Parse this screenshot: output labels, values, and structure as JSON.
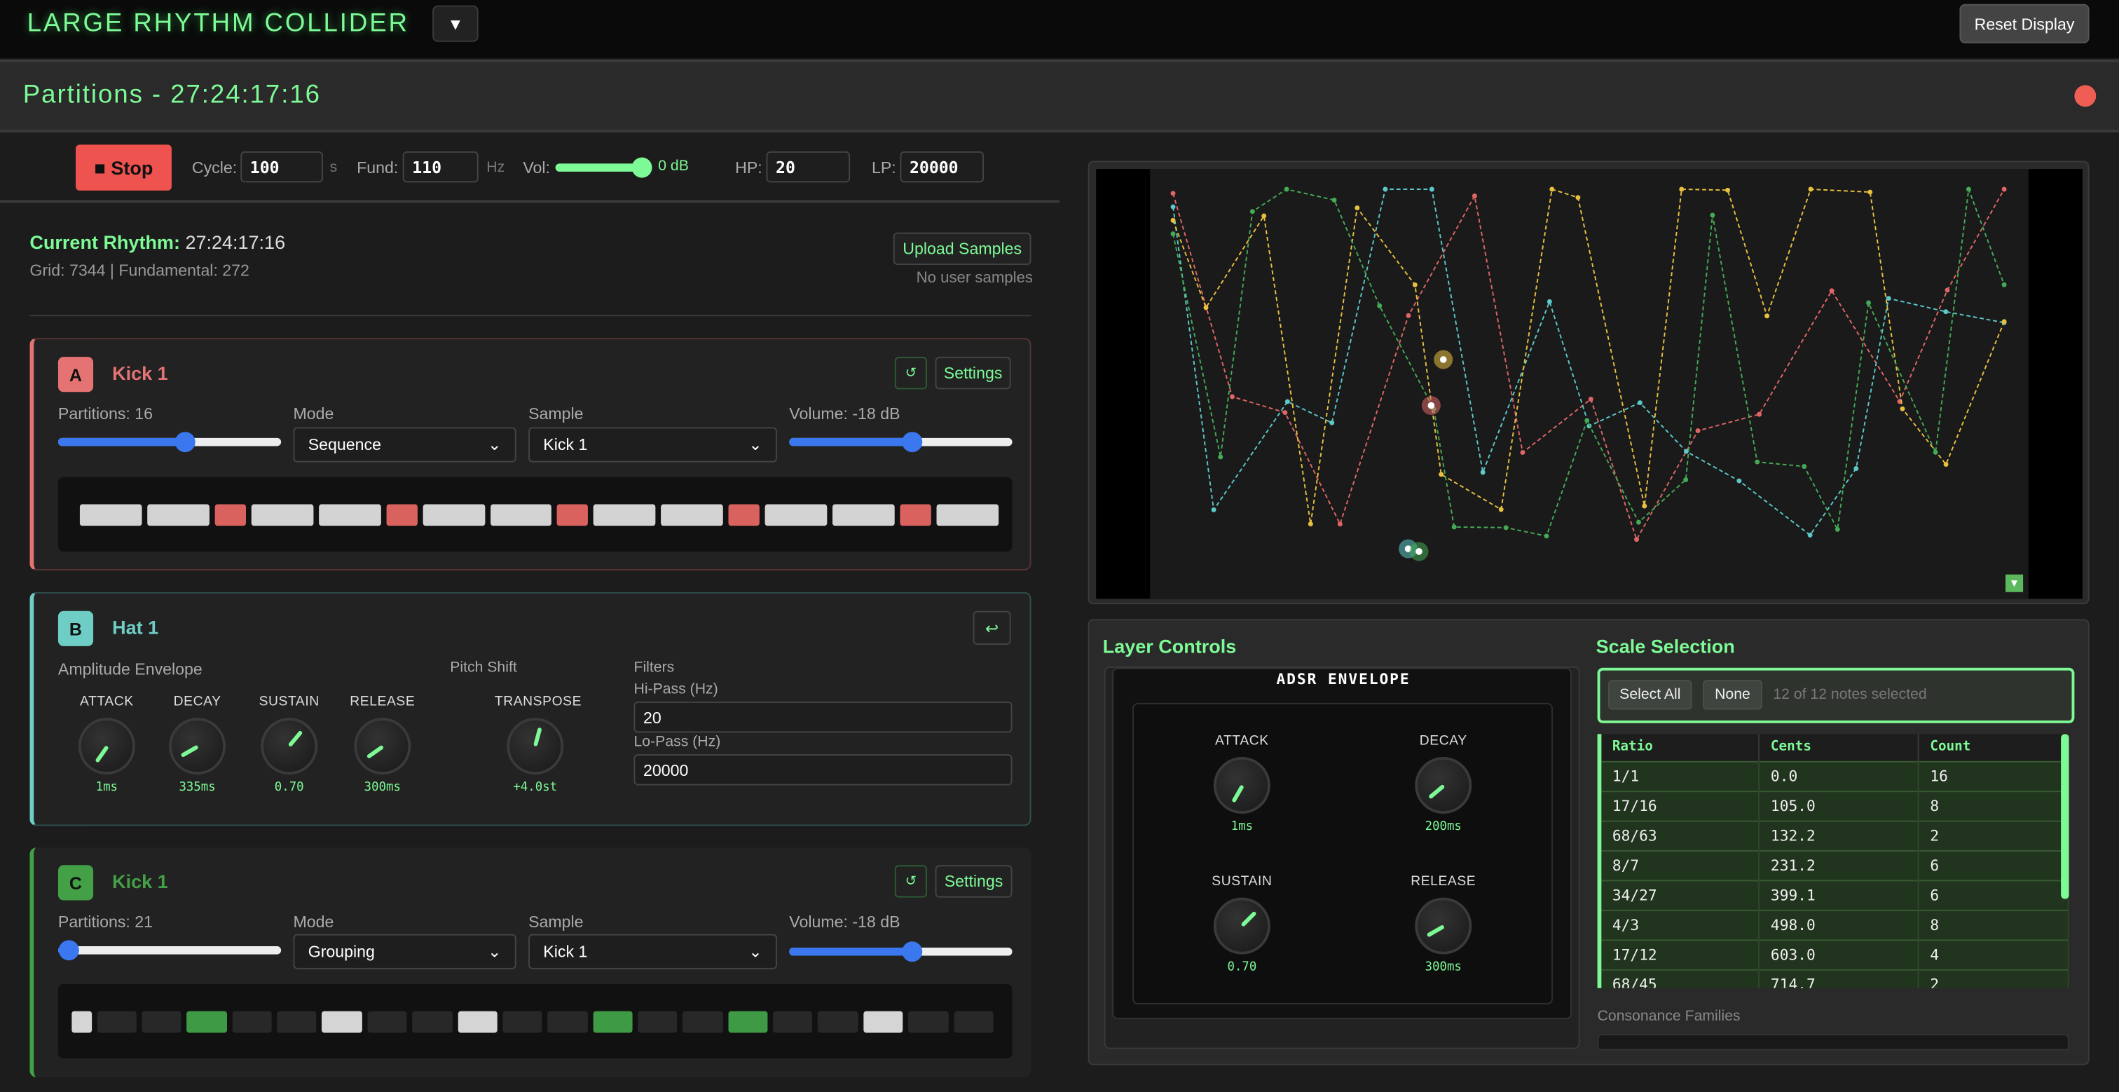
{
  "app": {
    "title": "LARGE RHYTHM COLLIDER",
    "menu_icon": "triangle-down",
    "reset_label": "Reset Display"
  },
  "window": {
    "title": "Partitions - 27:24:17:16",
    "close_color": "#ee5e55"
  },
  "transport": {
    "stop_label": "■ Stop",
    "cycle_label": "Cycle:",
    "cycle_value": "100",
    "cycle_unit": "s",
    "fund_label": "Fund:",
    "fund_value": "110",
    "fund_unit": "Hz",
    "vol_label": "Vol:",
    "vol_value": "0 dB",
    "vol_level": 1.0,
    "hp_label": "HP:",
    "hp_value": "20",
    "lp_label": "LP:",
    "lp_value": "20000"
  },
  "rhythm": {
    "label": "Current Rhythm:",
    "value": "27:24:17:16",
    "info": "Grid: 7344 | Fundamental: 272",
    "upload_label": "Upload Samples",
    "samples_status": "No user samples"
  },
  "layers": [
    {
      "letter": "A",
      "name": "Kick 1",
      "color": "#e57373",
      "partitions_label": "Partitions: 16",
      "partitions_level": 0.57,
      "mode_label": "Mode",
      "mode": "Sequence",
      "sample_label": "Sample",
      "sample": "Kick 1",
      "volume_label": "Volume: -18 dB",
      "volume_level": 0.55,
      "reset_icon": "↺",
      "settings_label": "Settings",
      "pattern": [
        "off",
        "off",
        "on",
        "off",
        "off",
        "on",
        "off",
        "off",
        "on",
        "off",
        "off",
        "on",
        "off",
        "off",
        "on",
        "off"
      ]
    },
    {
      "letter": "B",
      "name": "Hat 1",
      "color": "#6ecdc4",
      "collapse_icon": "↩",
      "env_label": "Amplitude Envelope",
      "pitch_label": "Pitch Shift",
      "filters_label": "Filters",
      "hipass_label": "Hi-Pass (Hz)",
      "hipass_value": "20",
      "lopass_label": "Lo-Pass (Hz)",
      "lopass_value": "20000",
      "knobs": [
        {
          "label": "ATTACK",
          "value": "1ms"
        },
        {
          "label": "DECAY",
          "value": "335ms"
        },
        {
          "label": "SUSTAIN",
          "value": "0.70"
        },
        {
          "label": "RELEASE",
          "value": "300ms"
        },
        {
          "label": "TRANSPOSE",
          "value": "+4.0st"
        }
      ]
    },
    {
      "letter": "C",
      "name": "Kick 1",
      "color": "#43a047",
      "partitions_label": "Partitions: 21",
      "partitions_level": 0.05,
      "mode_label": "Mode",
      "mode": "Grouping",
      "sample_label": "Sample",
      "sample": "Kick 1",
      "volume_label": "Volume: -18 dB",
      "volume_level": 0.55,
      "reset_icon": "↺",
      "settings_label": "Settings",
      "pattern": [
        "white",
        "dark",
        "dark",
        "on",
        "dark",
        "dark",
        "white",
        "dark",
        "dark",
        "white",
        "dark",
        "dark",
        "on",
        "dark",
        "dark",
        "on",
        "dark",
        "dark",
        "white",
        "dark",
        "dark"
      ]
    }
  ],
  "visualizer": {
    "series_colors": [
      "#e06666",
      "#5cc8c8",
      "#e8c040",
      "#44aa55"
    ],
    "toggle_icon": "triangle-down"
  },
  "layer_controls": {
    "title": "Layer Controls",
    "adsr_title": "ADSR ENVELOPE",
    "knobs": [
      {
        "label": "ATTACK",
        "value": "1ms"
      },
      {
        "label": "DECAY",
        "value": "200ms"
      },
      {
        "label": "SUSTAIN",
        "value": "0.70"
      },
      {
        "label": "RELEASE",
        "value": "300ms"
      }
    ]
  },
  "scale": {
    "title": "Scale Selection",
    "select_all": "Select All",
    "none": "None",
    "status": "12 of 12 notes selected",
    "columns": [
      "Ratio",
      "Cents",
      "Count"
    ],
    "rows": [
      [
        "1/1",
        "0.0",
        "16"
      ],
      [
        "17/16",
        "105.0",
        "8"
      ],
      [
        "68/63",
        "132.2",
        "2"
      ],
      [
        "8/7",
        "231.2",
        "6"
      ],
      [
        "34/27",
        "399.1",
        "6"
      ],
      [
        "4/3",
        "498.0",
        "8"
      ],
      [
        "17/12",
        "603.0",
        "4"
      ],
      [
        "68/45",
        "714.7",
        "2"
      ]
    ],
    "families_label": "Consonance Families"
  }
}
